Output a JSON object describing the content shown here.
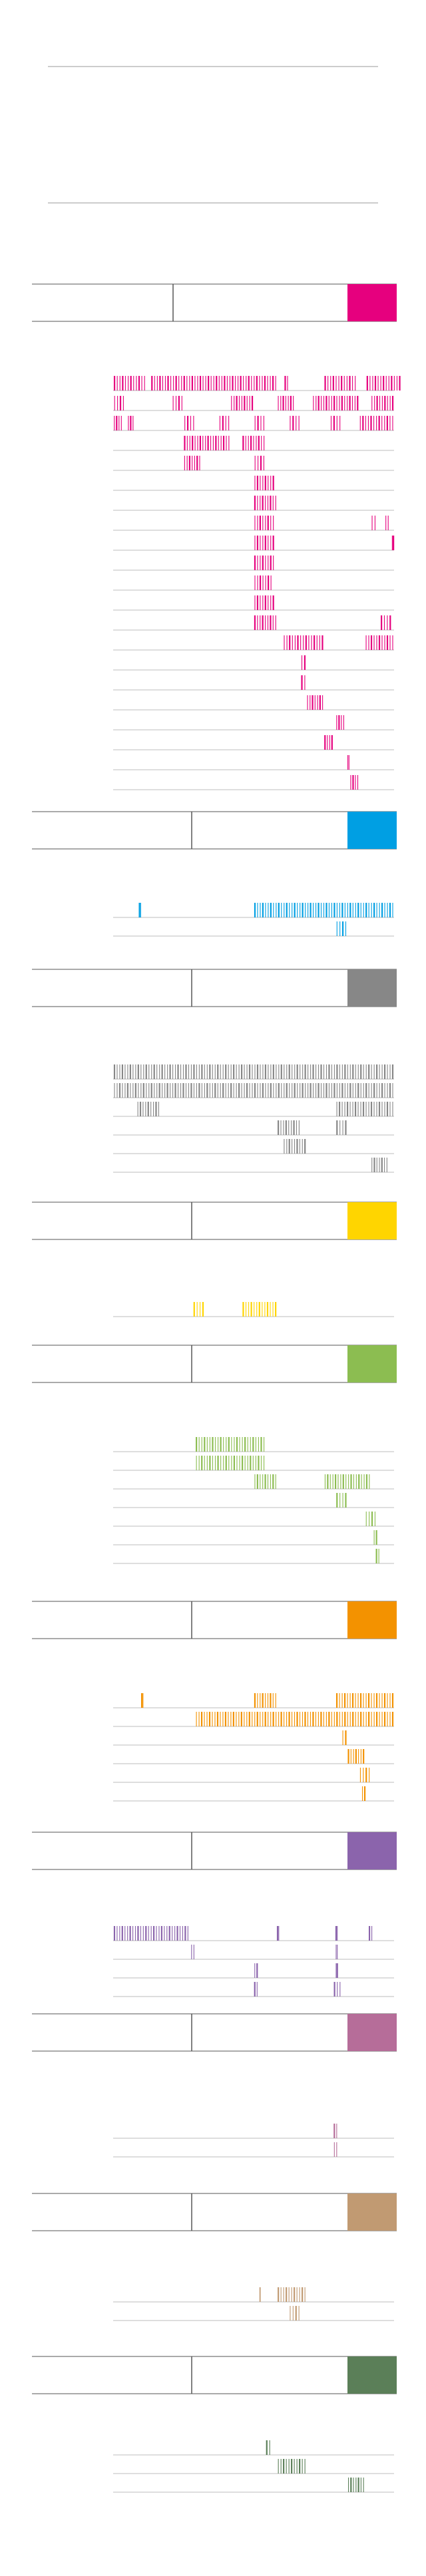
{
  "chart_data": {
    "type": "barcode",
    "title": "",
    "xlabel": "",
    "ylabel": "",
    "groups": [
      {
        "color": "#e6007e",
        "rows": [
          [
            [
              0,
              28
            ],
            [
              32,
              140
            ],
            [
              146,
              150
            ],
            [
              180,
              208
            ],
            [
              216,
              246
            ]
          ],
          [
            [
              0,
              10
            ],
            [
              50,
              60
            ],
            [
              100,
              120
            ],
            [
              140,
              155
            ],
            [
              170,
              210
            ],
            [
              220,
              240
            ]
          ],
          [
            [
              0,
              8
            ],
            [
              12,
              18
            ],
            [
              60,
              70
            ],
            [
              90,
              100
            ],
            [
              120,
              130
            ],
            [
              150,
              160
            ],
            [
              185,
              195
            ],
            [
              210,
              240
            ]
          ],
          [
            [
              60,
              100
            ],
            [
              110,
              130
            ]
          ],
          [
            [
              60,
              75
            ],
            [
              120,
              130
            ]
          ],
          [
            [
              120,
              138
            ]
          ],
          [
            [
              120,
              140
            ]
          ],
          [
            [
              120,
              138
            ],
            [
              220,
              225
            ],
            [
              232,
              236
            ]
          ],
          [
            [
              120,
              138
            ],
            [
              238,
              240
            ]
          ],
          [
            [
              120,
              138
            ]
          ],
          [
            [
              120,
              136
            ]
          ],
          [
            [
              120,
              138
            ]
          ],
          [
            [
              120,
              140
            ],
            [
              228,
              238
            ]
          ],
          [
            [
              145,
              180
            ],
            [
              215,
              240
            ]
          ],
          [
            [
              160,
              165
            ]
          ],
          [
            [
              160,
              165
            ]
          ],
          [
            [
              165,
              180
            ]
          ],
          [
            [
              190,
              198
            ]
          ],
          [
            [
              180,
              188
            ]
          ],
          [
            [
              200,
              202
            ]
          ],
          [
            [
              202,
              210
            ]
          ]
        ]
      },
      {
        "color": "#009fe3",
        "rows": [
          [
            [
              22,
              24
            ],
            [
              120,
              240
            ]
          ],
          [
            [
              190,
              200
            ]
          ]
        ]
      },
      {
        "color": "#878787",
        "rows": [
          [
            [
              0,
              240
            ]
          ],
          [
            [
              0,
              240
            ]
          ],
          [
            [
              20,
              40
            ],
            [
              190,
              240
            ]
          ],
          [
            [
              140,
              160
            ],
            [
              190,
              200
            ]
          ],
          [
            [
              145,
              165
            ]
          ],
          [
            [
              220,
              235
            ]
          ]
        ]
      },
      {
        "color": "#ffd500",
        "rows": [
          [
            [
              68,
              78
            ],
            [
              110,
              140
            ]
          ]
        ]
      },
      {
        "color": "#8cbd51",
        "rows": [
          [
            [
              70,
              130
            ]
          ],
          [
            [
              70,
              130
            ]
          ],
          [
            [
              120,
              140
            ],
            [
              180,
              220
            ]
          ],
          [
            [
              190,
              200
            ]
          ],
          [
            [
              215,
              225
            ]
          ],
          [
            [
              222,
              226
            ]
          ],
          [
            [
              224,
              228
            ]
          ]
        ]
      },
      {
        "color": "#f39200",
        "rows": [
          [
            [
              24,
              26
            ],
            [
              120,
              140
            ],
            [
              190,
              240
            ]
          ],
          [
            [
              70,
              240
            ]
          ],
          [
            [
              195,
              200
            ]
          ],
          [
            [
              200,
              215
            ]
          ],
          [
            [
              210,
              220
            ]
          ],
          [
            [
              212,
              216
            ]
          ]
        ]
      },
      {
        "color": "#8b64ac",
        "rows": [
          [
            [
              0,
              65
            ],
            [
              140,
              142
            ],
            [
              190,
              192
            ],
            [
              218,
              222
            ]
          ],
          [
            [
              66,
              70
            ],
            [
              190,
              192
            ]
          ],
          [
            [
              120,
              124
            ],
            [
              190,
              192
            ]
          ],
          [
            [
              120,
              124
            ],
            [
              188,
              195
            ]
          ]
        ]
      },
      {
        "color": "#b66d99",
        "rows": [
          [
            [
              188,
              192
            ]
          ],
          [
            [
              188,
              192
            ]
          ]
        ]
      },
      {
        "color": "#c19a72",
        "rows": [
          [
            [
              125,
              126
            ],
            [
              140,
              165
            ]
          ],
          [
            [
              150,
              160
            ]
          ]
        ]
      },
      {
        "color": "#5b7f58",
        "rows": [
          [
            [
              130,
              135
            ]
          ],
          [
            [
              140,
              165
            ]
          ],
          [
            [
              200,
              215
            ]
          ]
        ]
      }
    ]
  }
}
